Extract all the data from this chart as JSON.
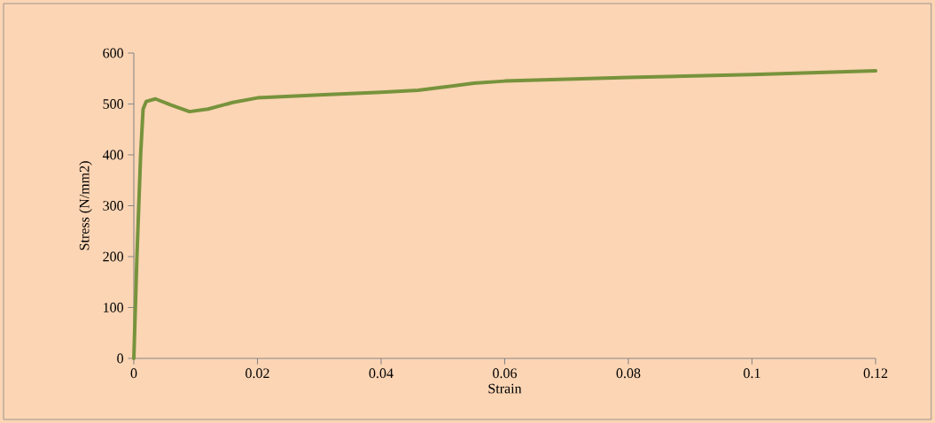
{
  "chart_data": {
    "type": "line",
    "xlabel": "Strain",
    "ylabel": "Stress (N/mm2)",
    "series": [
      {
        "color": "#77933c",
        "x": [
          0,
          0.0005,
          0.0011,
          0.0015,
          0.002,
          0.0035,
          0.006,
          0.009,
          0.012,
          0.016,
          0.02,
          0.03,
          0.04,
          0.046,
          0.05,
          0.055,
          0.06,
          0.08,
          0.1,
          0.12
        ],
        "values": [
          0,
          200,
          400,
          490,
          505,
          510,
          498,
          485,
          490,
          503,
          512,
          518,
          523,
          527,
          533,
          541,
          545,
          552,
          558,
          565
        ]
      }
    ],
    "xlim": [
      0,
      0.12
    ],
    "xticks": [
      0,
      0.02,
      0.04,
      0.06,
      0.08,
      0.1,
      0.12
    ],
    "ylim": [
      0,
      600
    ],
    "yticks": [
      0,
      100,
      200,
      300,
      400,
      500,
      600
    ],
    "marker": "none",
    "line_style": "solid"
  }
}
